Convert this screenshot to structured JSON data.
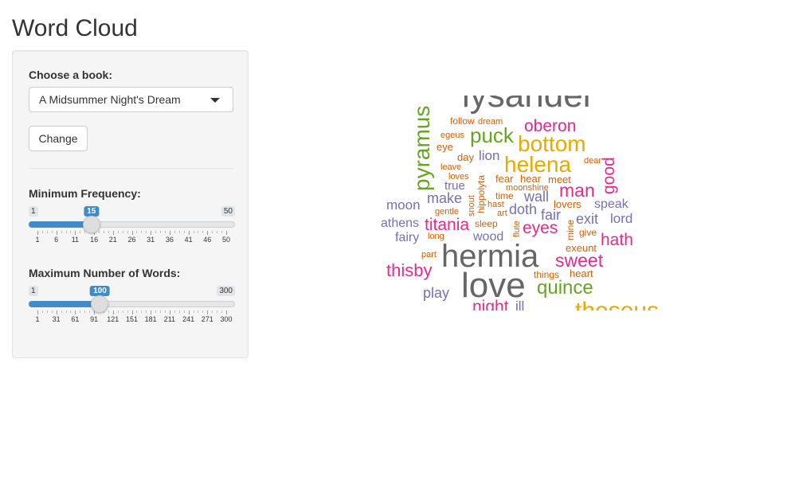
{
  "app": {
    "title": "Word Cloud"
  },
  "sidebar": {
    "book_label": "Choose a book:",
    "book_selected": "A Midsummer Night's Dream",
    "change_button": "Change",
    "min_freq": {
      "label": "Minimum Frequency:",
      "min": 1,
      "max": 50,
      "value": 15,
      "min_label": "1",
      "max_label": "50",
      "value_label": "15",
      "tick_labels": [
        "1",
        "6",
        "11",
        "16",
        "21",
        "26",
        "31",
        "36",
        "41",
        "46",
        "50"
      ]
    },
    "max_words": {
      "label": "Maximum Number of Words:",
      "min": 1,
      "max": 300,
      "value": 100,
      "min_label": "1",
      "max_label": "300",
      "value_label": "100",
      "tick_labels": [
        "1",
        "31",
        "61",
        "91",
        "121",
        "151",
        "181",
        "211",
        "241",
        "271",
        "300"
      ]
    }
  },
  "cloud": {
    "palette": {
      "gray": "#666666",
      "green": "#66a61e",
      "orange": "#d95f02",
      "gold": "#e6ab02",
      "magenta": "#e7298a",
      "purple": "#7570b3",
      "brown": "#a6761d"
    },
    "words": [
      {
        "text": "lysander",
        "color": "gray"
      },
      {
        "text": "pyramus",
        "color": "green",
        "vertical": true
      },
      {
        "text": "follow",
        "color": "orange"
      },
      {
        "text": "dream",
        "color": "orange"
      },
      {
        "text": "puck",
        "color": "green"
      },
      {
        "text": "oberon",
        "color": "magenta"
      },
      {
        "text": "egeus",
        "color": "orange"
      },
      {
        "text": "eye",
        "color": "orange"
      },
      {
        "text": "bottom",
        "color": "gold"
      },
      {
        "text": "day",
        "color": "orange"
      },
      {
        "text": "lion",
        "color": "purple"
      },
      {
        "text": "helena",
        "color": "gold"
      },
      {
        "text": "dear",
        "color": "orange"
      },
      {
        "text": "good",
        "color": "magenta",
        "vertical": true
      },
      {
        "text": "leave",
        "color": "orange"
      },
      {
        "text": "loves",
        "color": "orange"
      },
      {
        "text": "hippolyta",
        "color": "orange",
        "vertical": true
      },
      {
        "text": "fear",
        "color": "orange"
      },
      {
        "text": "hear",
        "color": "orange"
      },
      {
        "text": "meet",
        "color": "orange"
      },
      {
        "text": "true",
        "color": "purple"
      },
      {
        "text": "moonshine",
        "color": "orange"
      },
      {
        "text": "man",
        "color": "magenta"
      },
      {
        "text": "make",
        "color": "purple"
      },
      {
        "text": "snout",
        "color": "orange",
        "vertical": true
      },
      {
        "text": "time",
        "color": "orange"
      },
      {
        "text": "wall",
        "color": "purple"
      },
      {
        "text": "moon",
        "color": "purple"
      },
      {
        "text": "hast",
        "color": "orange"
      },
      {
        "text": "lovers",
        "color": "orange"
      },
      {
        "text": "speak",
        "color": "purple"
      },
      {
        "text": "gentle",
        "color": "orange"
      },
      {
        "text": "art",
        "color": "orange"
      },
      {
        "text": "doth",
        "color": "purple"
      },
      {
        "text": "fair",
        "color": "purple"
      },
      {
        "text": "athens",
        "color": "purple"
      },
      {
        "text": "titania",
        "color": "magenta"
      },
      {
        "text": "sleep",
        "color": "orange"
      },
      {
        "text": "flute",
        "color": "orange",
        "vertical": true
      },
      {
        "text": "eyes",
        "color": "magenta"
      },
      {
        "text": "mine",
        "color": "orange",
        "vertical": true
      },
      {
        "text": "exit",
        "color": "purple"
      },
      {
        "text": "lord",
        "color": "purple"
      },
      {
        "text": "fairy",
        "color": "purple"
      },
      {
        "text": "long",
        "color": "orange"
      },
      {
        "text": "wood",
        "color": "purple"
      },
      {
        "text": "give",
        "color": "orange"
      },
      {
        "text": "hath",
        "color": "magenta"
      },
      {
        "text": "exeunt",
        "color": "orange"
      },
      {
        "text": "part",
        "color": "orange"
      },
      {
        "text": "hermia",
        "color": "gray"
      },
      {
        "text": "sweet",
        "color": "magenta"
      },
      {
        "text": "thisby",
        "color": "magenta"
      },
      {
        "text": "things",
        "color": "orange"
      },
      {
        "text": "heart",
        "color": "orange"
      },
      {
        "text": "love",
        "color": "gray"
      },
      {
        "text": "quince",
        "color": "green"
      },
      {
        "text": "play",
        "color": "purple"
      },
      {
        "text": "night",
        "color": "magenta"
      },
      {
        "text": "ill",
        "color": "purple"
      },
      {
        "text": "theseus",
        "color": "gold"
      }
    ]
  }
}
